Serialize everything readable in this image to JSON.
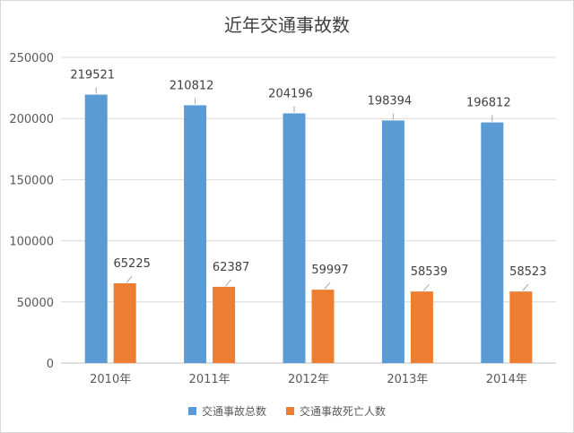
{
  "chart_data": {
    "type": "bar",
    "title": "近年交通事故数",
    "categories": [
      "2010年",
      "2011年",
      "2012年",
      "2013年",
      "2014年"
    ],
    "series": [
      {
        "name": "交通事故总数",
        "color": "#5b9bd5",
        "values": [
          219521,
          210812,
          204196,
          198394,
          196812
        ]
      },
      {
        "name": "交通事故死亡人数",
        "color": "#ed7d31",
        "values": [
          65225,
          62387,
          59997,
          58539,
          58523
        ]
      }
    ],
    "ylim": [
      0,
      250000
    ],
    "yticks": [
      "0",
      "50000",
      "100000",
      "150000",
      "200000",
      "250000"
    ],
    "grid": true,
    "legend": "bottom"
  }
}
